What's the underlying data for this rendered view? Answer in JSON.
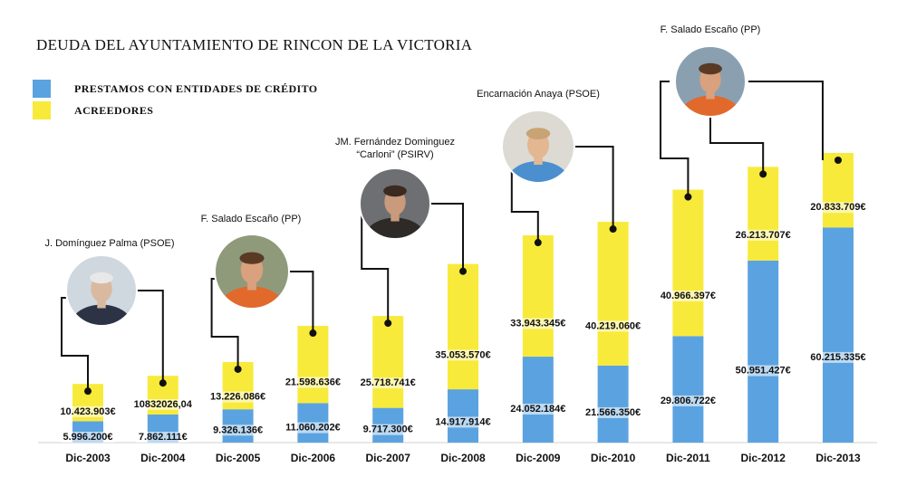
{
  "title": "DEUDA DEL AYUNTAMIENTO DE RINCON DE LA VICTORIA",
  "colors": {
    "prestamos": "#5ba3e0",
    "acreedores": "#f8ea3a",
    "connector": "#111111"
  },
  "legend": [
    {
      "label": "PRESTAMOS CON ENTIDADES DE CRÉDITO",
      "color": "#5ba3e0"
    },
    {
      "label": "ACREEDORES",
      "color": "#f8ea3a"
    }
  ],
  "people": [
    {
      "name": "J. Domínguez Palma (PSOE)",
      "icon": "portrait-grey-hair-suit"
    },
    {
      "name": "F. Salado Escaño (PP)",
      "icon": "portrait-orange-shirt"
    },
    {
      "name": "JM. Fernández Dominguez\n“Carloni” (PSIRV)",
      "icon": "portrait-suit-glasses"
    },
    {
      "name": "Encarnación Anaya (PSOE)",
      "icon": "portrait-woman-blue-top"
    },
    {
      "name": "F. Salado Escaño (PP)",
      "icon": "portrait-orange-shirt"
    }
  ],
  "chart_data": {
    "type": "bar",
    "stacked": true,
    "categories": [
      "Dic-2003",
      "Dic-2004",
      "Dic-2005",
      "Dic-2006",
      "Dic-2007",
      "Dic-2008",
      "Dic-2009",
      "Dic-2010",
      "Dic-2011",
      "Dic-2012",
      "Dic-2013"
    ],
    "series": [
      {
        "name": "PRESTAMOS CON ENTIDADES DE CRÉDITO",
        "values": [
          5996200,
          7862111,
          9326136,
          11060202,
          9717300,
          14917914,
          24052184,
          21566350,
          29806722,
          50951427,
          60215335
        ],
        "labels": [
          "5.996.200€",
          "7.862.111€",
          "9.326.136€",
          "11.060.202€",
          "9.717.300€",
          "14.917.914€",
          "24.052.184€",
          "21.566.350€",
          "29.806.722€",
          "50.951.427€",
          "60.215.335€"
        ]
      },
      {
        "name": "ACREEDORES",
        "values": [
          10423903,
          10832026.04,
          13226086,
          21598636,
          25718741,
          35053570,
          33943345,
          40219060,
          40966397,
          26213707,
          20833709
        ],
        "labels": [
          "10.423.903€",
          "10832026,04",
          "13.226.086€",
          "21.598.636€",
          "25.718.741€",
          "35.053.570€",
          "33.943.345€",
          "40.219.060€",
          "40.966.397€",
          "26.213.707€",
          "20.833.709€"
        ]
      }
    ],
    "grid": false,
    "legend_position": "top-left"
  }
}
